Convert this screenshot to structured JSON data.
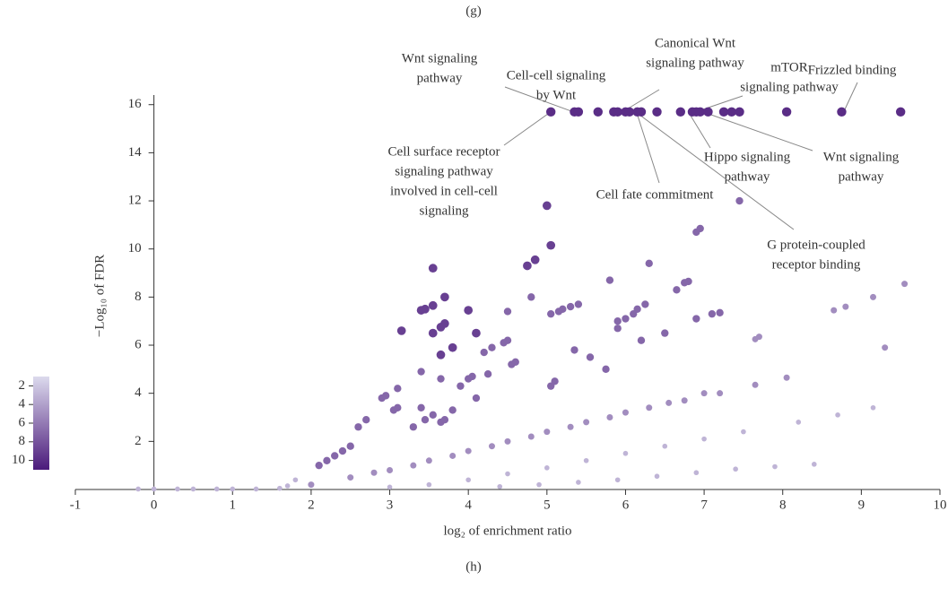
{
  "chart_data": {
    "type": "scatter",
    "top_label": "(g)",
    "bottom_label": "(h)",
    "x_label": "log₂ of enrichment ratio",
    "y_label": "−Log₁₀ of FDR",
    "xlim": [
      -1,
      10
    ],
    "ylim": [
      0,
      16.4
    ],
    "xticks": [
      -1,
      0,
      1,
      2,
      3,
      4,
      5,
      6,
      7,
      8,
      9,
      10
    ],
    "yticks": [
      2,
      4,
      6,
      8,
      10,
      12,
      14,
      16
    ],
    "colorbar": {
      "lim": [
        1,
        11
      ],
      "ticks": [
        2,
        4,
        6,
        8,
        10
      ],
      "colors": [
        "#dcdaed",
        "#4b1a7b"
      ]
    },
    "series": [
      {
        "c": 10,
        "x": [
          5.05,
          5.35,
          5.4,
          5.65,
          5.85,
          5.9,
          6.0,
          6.05,
          6.15,
          6.2,
          6.4,
          6.7,
          6.85,
          6.9,
          6.95,
          7.05,
          7.25,
          7.35,
          7.45,
          8.05,
          8.75,
          9.5
        ],
        "y": [
          15.7,
          15.7,
          15.7,
          15.7,
          15.7,
          15.7,
          15.7,
          15.7,
          15.7,
          15.7,
          15.7,
          15.7,
          15.7,
          15.7,
          15.7,
          15.7,
          15.7,
          15.7,
          15.7,
          15.7,
          15.7,
          15.7
        ]
      },
      {
        "c": 9,
        "x": [
          5.0,
          5.05,
          3.55,
          4.85,
          4.75,
          3.7,
          3.55,
          3.45,
          3.4,
          4.0,
          3.7,
          3.65,
          3.55,
          3.15,
          4.1,
          3.8,
          3.65
        ],
        "y": [
          11.8,
          10.15,
          9.2,
          9.55,
          9.3,
          8.0,
          7.65,
          7.5,
          7.45,
          7.45,
          6.9,
          6.75,
          6.5,
          6.6,
          6.5,
          5.9,
          5.6
        ]
      },
      {
        "c": 7,
        "x": [
          6.95,
          6.9,
          7.45,
          4.8,
          5.05,
          5.15,
          5.2,
          5.3,
          5.4,
          4.5,
          4.5,
          4.45,
          4.3,
          4.2,
          3.4,
          3.65,
          3.1,
          2.95,
          2.9,
          3.05,
          3.1,
          2.7,
          2.6,
          2.5,
          3.65,
          3.7,
          4.1,
          4.05,
          4.0,
          3.9,
          4.25,
          3.8,
          3.55,
          3.45,
          3.4,
          3.3,
          6.3,
          6.25,
          6.15,
          6.1,
          6.0,
          5.8,
          5.9,
          5.9,
          5.55,
          5.1,
          5.05,
          4.55,
          4.6,
          6.8,
          6.75,
          6.65,
          6.9,
          7.1,
          7.2,
          6.5,
          6.2,
          5.75,
          5.35,
          2.2,
          2.1,
          2.3,
          2.4
        ],
        "y": [
          10.85,
          10.7,
          12.0,
          8.0,
          7.3,
          7.4,
          7.5,
          7.6,
          7.7,
          7.4,
          6.2,
          6.1,
          5.9,
          5.7,
          4.9,
          4.6,
          4.2,
          3.9,
          3.8,
          3.3,
          3.4,
          2.9,
          2.6,
          1.8,
          2.8,
          2.9,
          3.8,
          4.7,
          4.6,
          4.3,
          4.8,
          3.3,
          3.1,
          2.9,
          3.4,
          2.6,
          9.4,
          7.7,
          7.5,
          7.3,
          7.1,
          8.7,
          6.7,
          7.0,
          5.5,
          4.5,
          4.3,
          5.2,
          5.3,
          8.65,
          8.6,
          8.3,
          7.1,
          7.3,
          7.35,
          6.5,
          6.2,
          5.0,
          5.8,
          1.2,
          1.0,
          1.4,
          1.6
        ]
      },
      {
        "c": 5,
        "x": [
          9.55,
          9.15,
          8.8,
          8.65,
          7.65,
          7.7,
          9.3,
          7.0,
          6.55,
          6.0,
          5.5,
          5.0,
          4.5,
          4.0,
          3.5,
          3.0,
          2.5,
          2.0,
          8.05,
          7.65,
          7.2,
          6.75,
          6.3,
          5.8,
          5.3,
          4.8,
          4.3,
          3.8,
          3.3,
          2.8
        ],
        "y": [
          8.55,
          8.0,
          7.6,
          7.45,
          6.25,
          6.35,
          5.9,
          4.0,
          3.6,
          3.2,
          2.8,
          2.4,
          2.0,
          1.6,
          1.2,
          0.8,
          0.5,
          0.2,
          4.65,
          4.35,
          4.0,
          3.7,
          3.4,
          3.0,
          2.6,
          2.2,
          1.8,
          1.4,
          1.0,
          0.7
        ]
      },
      {
        "c": 3,
        "x": [
          9.15,
          8.7,
          8.2,
          7.5,
          7.0,
          6.5,
          6.0,
          5.5,
          5.0,
          4.5,
          4.0,
          3.5,
          3.0,
          8.4,
          7.9,
          7.4,
          6.9,
          6.4,
          5.9,
          5.4,
          4.9,
          4.4,
          1.8,
          1.7,
          1.6,
          1.0,
          0.5,
          0.0,
          -0.2,
          0.3,
          0.8,
          1.3
        ],
        "y": [
          3.4,
          3.1,
          2.8,
          2.4,
          2.1,
          1.8,
          1.5,
          1.2,
          0.9,
          0.65,
          0.4,
          0.2,
          0.1,
          1.05,
          0.95,
          0.85,
          0.7,
          0.55,
          0.4,
          0.3,
          0.2,
          0.12,
          0.4,
          0.15,
          0.05,
          0.02,
          0.02,
          0.02,
          0.02,
          0.02,
          0.02,
          0.02
        ]
      }
    ],
    "annotations": [
      {
        "lines": [
          "Wnt signaling",
          "pathway"
        ]
      },
      {
        "lines": [
          "Cell-cell signaling",
          "by Wnt"
        ]
      },
      {
        "lines": [
          "Canonical Wnt",
          "signaling pathway"
        ]
      },
      {
        "lines": [
          "mTOR",
          "signaling pathway"
        ]
      },
      {
        "lines": [
          "Frizzled binding"
        ]
      },
      {
        "lines": [
          "Cell surface receptor",
          "signaling pathway",
          "involved in cell-cell",
          "signaling"
        ]
      },
      {
        "lines": [
          "Hippo signaling",
          "pathway"
        ]
      },
      {
        "lines": [
          "Wnt signaling",
          "pathway"
        ]
      },
      {
        "lines": [
          "Cell fate commitment"
        ]
      },
      {
        "lines": [
          "G protein-coupled",
          "receptor binding"
        ]
      }
    ]
  }
}
